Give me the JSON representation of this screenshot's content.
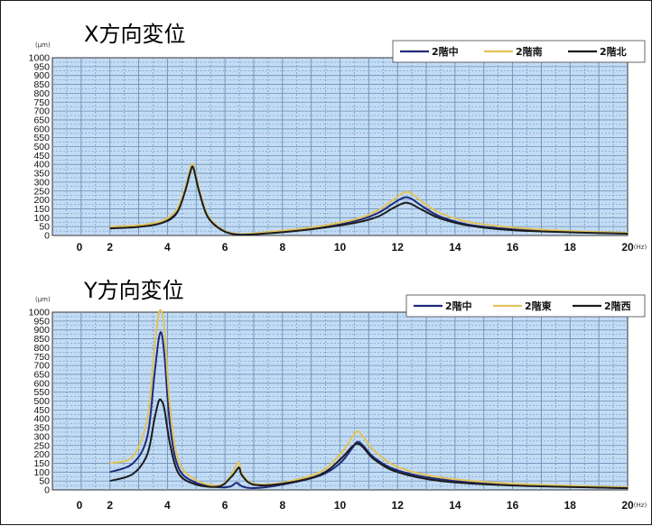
{
  "colors": {
    "plot_bg": "#c3dcf5",
    "grid_major": "#6b8fb5",
    "grid_minor": "#5d86b0",
    "series_navy": "#1f2a7a",
    "series_yellow": "#e2c35a",
    "series_black": "#1c1c1c"
  },
  "chart_data": [
    {
      "type": "line",
      "title": "X方向変位",
      "yunit": "(μm)",
      "xunit": "(Hz)",
      "xlim": [
        0,
        20
      ],
      "ylim": [
        0,
        1000
      ],
      "xticks": [
        "0",
        "2",
        "4",
        "6",
        "8",
        "10",
        "12",
        "14",
        "16",
        "18",
        "20"
      ],
      "yticks": [
        "1000",
        "950",
        "900",
        "850",
        "800",
        "750",
        "700",
        "650",
        "600",
        "550",
        "500",
        "450",
        "400",
        "350",
        "300",
        "250",
        "200",
        "150",
        "100",
        "50",
        "0"
      ],
      "grid": true,
      "legend_position": "top-right",
      "series": [
        {
          "name": "2階中",
          "color": "#1f2a7a",
          "x": [
            2,
            3,
            3.8,
            4.3,
            4.6,
            4.8,
            4.9,
            5.1,
            5.4,
            5.9,
            6.5,
            7.5,
            9,
            10.5,
            11.3,
            11.8,
            12.1,
            12.3,
            12.5,
            12.9,
            13.5,
            14.5,
            16,
            18,
            20
          ],
          "y": [
            45,
            52,
            75,
            130,
            250,
            375,
            390,
            260,
            110,
            30,
            5,
            15,
            40,
            80,
            125,
            175,
            205,
            215,
            205,
            160,
            105,
            60,
            35,
            20,
            12
          ]
        },
        {
          "name": "2階南",
          "color": "#e2c35a",
          "x": [
            2,
            3,
            3.8,
            4.3,
            4.6,
            4.8,
            4.9,
            5.1,
            5.4,
            5.9,
            6.5,
            7.5,
            9,
            10.5,
            11.3,
            11.8,
            12.1,
            12.3,
            12.5,
            12.9,
            13.5,
            14.5,
            16,
            18,
            20
          ],
          "y": [
            50,
            58,
            80,
            140,
            260,
            380,
            395,
            265,
            115,
            35,
            8,
            20,
            45,
            90,
            140,
            195,
            230,
            245,
            235,
            185,
            125,
            75,
            45,
            25,
            15
          ]
        },
        {
          "name": "2階北",
          "color": "#1c1c1c",
          "x": [
            2,
            3,
            3.8,
            4.3,
            4.6,
            4.8,
            4.9,
            5.1,
            5.4,
            5.9,
            6.5,
            7.5,
            9,
            10.5,
            11.3,
            11.8,
            12.1,
            12.3,
            12.5,
            12.9,
            13.5,
            14.5,
            16,
            18,
            20
          ],
          "y": [
            40,
            48,
            70,
            120,
            240,
            360,
            380,
            250,
            105,
            30,
            5,
            12,
            35,
            70,
            105,
            150,
            175,
            185,
            175,
            140,
            95,
            55,
            30,
            18,
            10
          ]
        }
      ]
    },
    {
      "type": "line",
      "title": "Y方向変位",
      "yunit": "(μm)",
      "xunit": "(Hz)",
      "xlim": [
        0,
        20
      ],
      "ylim": [
        0,
        1000
      ],
      "xticks": [
        "0",
        "2",
        "4",
        "6",
        "8",
        "10",
        "12",
        "14",
        "16",
        "18",
        "20"
      ],
      "yticks": [
        "1000",
        "950",
        "900",
        "850",
        "800",
        "750",
        "700",
        "650",
        "600",
        "550",
        "500",
        "450",
        "400",
        "350",
        "300",
        "250",
        "200",
        "150",
        "100",
        "50",
        "0"
      ],
      "grid": true,
      "legend_position": "top-right",
      "series": [
        {
          "name": "2階中",
          "color": "#1f2a7a",
          "x": [
            2,
            2.8,
            3.3,
            3.55,
            3.7,
            3.8,
            3.9,
            4.1,
            4.4,
            5,
            5.8,
            6.2,
            6.4,
            6.6,
            7,
            8,
            9.3,
            10,
            10.4,
            10.6,
            10.8,
            11.2,
            12,
            13.5,
            16,
            20
          ],
          "y": [
            100,
            150,
            300,
            650,
            850,
            880,
            750,
            350,
            120,
            40,
            15,
            20,
            40,
            20,
            10,
            30,
            80,
            150,
            230,
            270,
            250,
            180,
            110,
            60,
            30,
            10
          ]
        },
        {
          "name": "2階東",
          "color": "#e2c35a",
          "x": [
            2,
            2.8,
            3.3,
            3.55,
            3.7,
            3.8,
            3.9,
            4.1,
            4.4,
            5,
            5.8,
            6.2,
            6.4,
            6.5,
            6.6,
            7,
            8,
            9.3,
            10,
            10.4,
            10.6,
            10.8,
            11.2,
            12,
            13.5,
            16,
            20
          ],
          "y": [
            150,
            190,
            400,
            800,
            990,
            1000,
            900,
            450,
            160,
            55,
            25,
            80,
            140,
            150,
            90,
            35,
            40,
            100,
            200,
            290,
            330,
            300,
            220,
            130,
            70,
            35,
            15
          ]
        },
        {
          "name": "2階西",
          "color": "#1c1c1c",
          "x": [
            2,
            2.8,
            3.3,
            3.55,
            3.7,
            3.8,
            3.9,
            4.1,
            4.4,
            5,
            5.8,
            6.2,
            6.4,
            6.5,
            6.6,
            7,
            8,
            9.3,
            10,
            10.4,
            10.6,
            10.8,
            11.2,
            12,
            13.5,
            16,
            20
          ],
          "y": [
            50,
            90,
            200,
            400,
            500,
            500,
            450,
            250,
            90,
            30,
            20,
            70,
            110,
            125,
            80,
            30,
            35,
            85,
            170,
            240,
            260,
            240,
            170,
            100,
            50,
            25,
            10
          ]
        }
      ]
    }
  ]
}
